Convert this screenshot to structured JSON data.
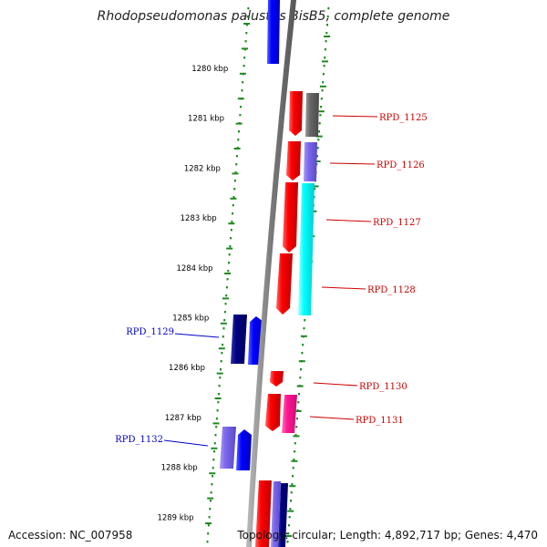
{
  "title": "Rhodopseudomonas palustris BisB5, complete genome",
  "ticks": [
    "1280 kbp",
    "1281 kbp",
    "1282 kbp",
    "1283 kbp",
    "1284 kbp",
    "1285 kbp",
    "1286 kbp",
    "1287 kbp",
    "1288 kbp",
    "1289 kbp"
  ],
  "genes": [
    {
      "name": "RPD_1125",
      "strand": "forward",
      "color": "#cc0000"
    },
    {
      "name": "RPD_1126",
      "strand": "forward",
      "color": "#cc0000"
    },
    {
      "name": "RPD_1127",
      "strand": "forward",
      "color": "#cc0000"
    },
    {
      "name": "RPD_1128",
      "strand": "forward",
      "color": "#cc0000"
    },
    {
      "name": "RPD_1129",
      "strand": "reverse",
      "color": "#0000cc"
    },
    {
      "name": "RPD_1130",
      "strand": "forward",
      "color": "#cc0000"
    },
    {
      "name": "RPD_1131",
      "strand": "forward",
      "color": "#cc0000"
    },
    {
      "name": "RPD_1132",
      "strand": "reverse",
      "color": "#0000cc"
    }
  ],
  "footer": {
    "accession": "Accession: NC_007958",
    "summary": "Topology: circular; Length: 4,892,717 bp; Genes: 4,470"
  }
}
